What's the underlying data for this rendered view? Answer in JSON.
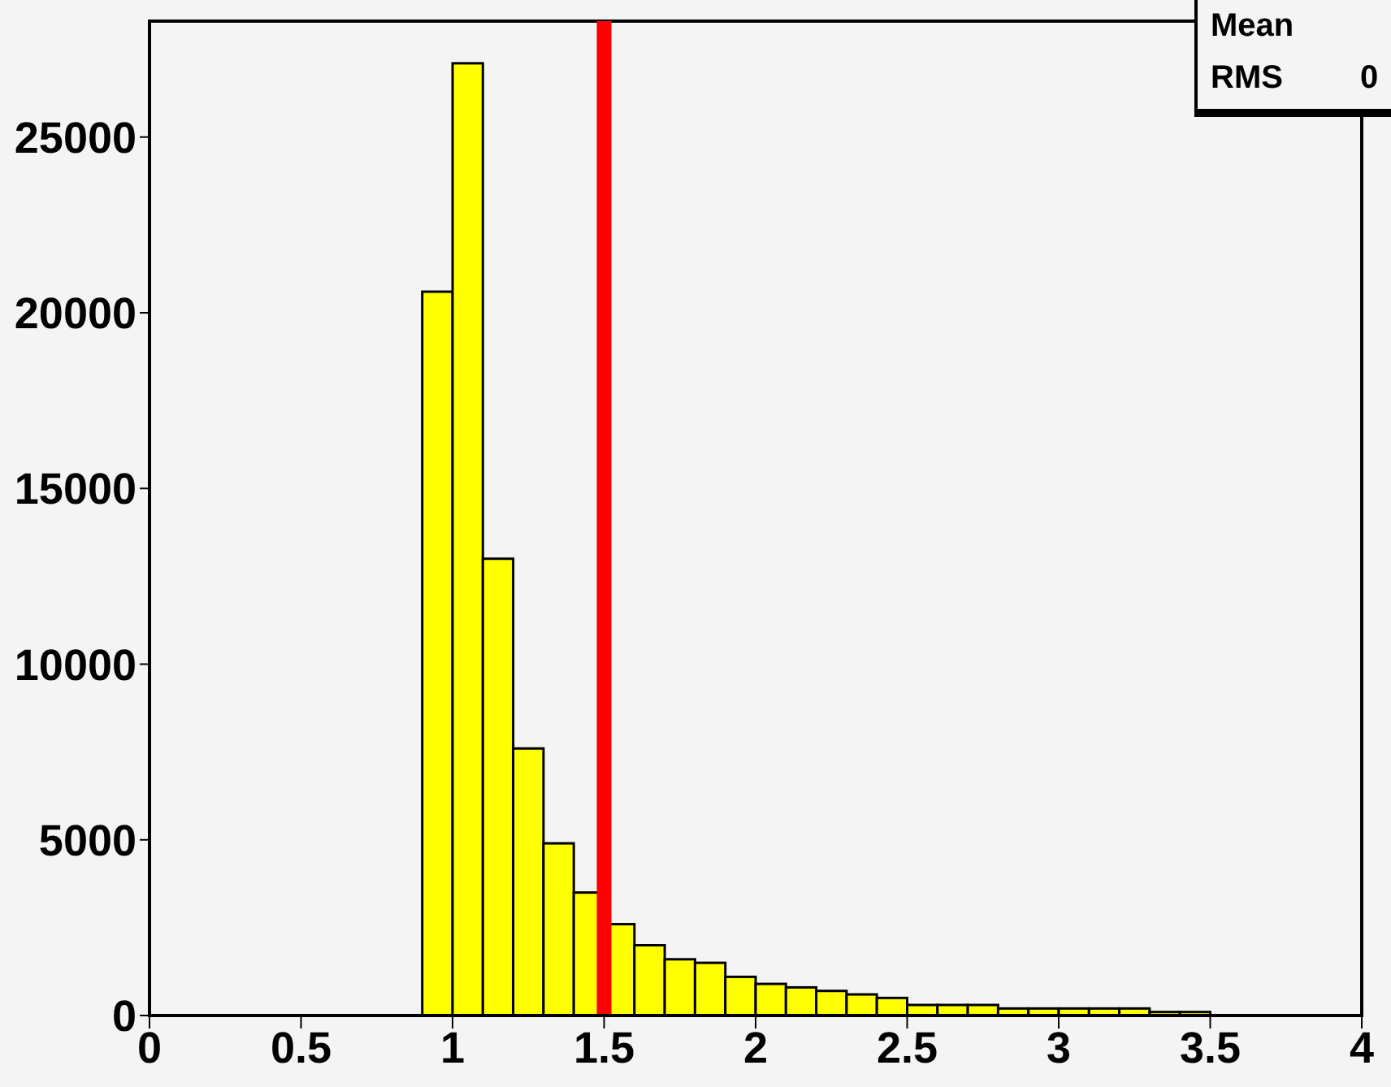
{
  "chart_data": {
    "type": "histogram",
    "bins": [
      0.9,
      1,
      1.1,
      1.2,
      1.3,
      1.4,
      1.5,
      1.6,
      1.7,
      1.8,
      1.9,
      2,
      2.1,
      2.2,
      2.3,
      2.4,
      2.5,
      2.6,
      2.7,
      2.8,
      2.9,
      3,
      3.1,
      3.2,
      3.3,
      3.4,
      3.5
    ],
    "values": [
      20600,
      27100,
      13000,
      7600,
      4900,
      3500,
      2600,
      2000,
      1600,
      1500,
      1100,
      900,
      800,
      700,
      600,
      500,
      300,
      300,
      300,
      200,
      200,
      200,
      200,
      200,
      100,
      100
    ],
    "color": "#ffff00",
    "xlim": [
      0,
      4
    ],
    "xticks": [
      0,
      0.5,
      1,
      1.5,
      2,
      2.5,
      3,
      3.5,
      4
    ],
    "ylim": [
      0,
      28300
    ],
    "yticks": [
      0,
      5000,
      10000,
      15000,
      20000,
      25000
    ],
    "ref_lines": [
      {
        "axis": "x",
        "value": 1.5,
        "label": null,
        "color": "#ff0000"
      }
    ],
    "annotations": [
      "Mean",
      "RMS",
      "0"
    ]
  }
}
